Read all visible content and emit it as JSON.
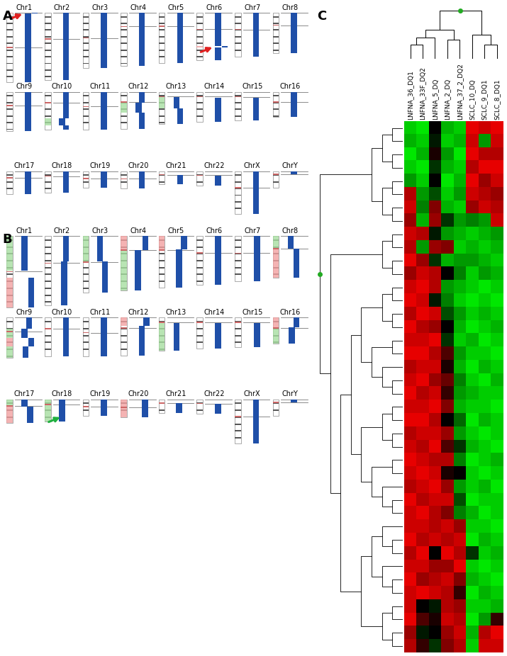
{
  "chromosomes": [
    {
      "name": "Chr1",
      "row": 0,
      "length": 249,
      "centromere": 0.5
    },
    {
      "name": "Chr2",
      "row": 0,
      "length": 243,
      "centromere": 0.39
    },
    {
      "name": "Chr3",
      "row": 0,
      "length": 198,
      "centromere": 0.46
    },
    {
      "name": "Chr4",
      "row": 0,
      "length": 191,
      "centromere": 0.26
    },
    {
      "name": "Chr5",
      "row": 0,
      "length": 181,
      "centromere": 0.27
    },
    {
      "name": "Chr6",
      "row": 0,
      "length": 171,
      "centromere": 0.35
    },
    {
      "name": "Chr7",
      "row": 0,
      "length": 159,
      "centromere": 0.38
    },
    {
      "name": "Chr8",
      "row": 0,
      "length": 146,
      "centromere": 0.31
    },
    {
      "name": "Chr9",
      "row": 1,
      "length": 141,
      "centromere": 0.35
    },
    {
      "name": "Chr10",
      "row": 1,
      "length": 136,
      "centromere": 0.29
    },
    {
      "name": "Chr11",
      "row": 1,
      "length": 135,
      "centromere": 0.39
    },
    {
      "name": "Chr12",
      "row": 1,
      "length": 134,
      "centromere": 0.27
    },
    {
      "name": "Chr13",
      "row": 1,
      "length": 115,
      "centromere": 0.15
    },
    {
      "name": "Chr14",
      "row": 1,
      "length": 107,
      "centromere": 0.16
    },
    {
      "name": "Chr15",
      "row": 1,
      "length": 102,
      "centromere": 0.17
    },
    {
      "name": "Chr16",
      "row": 1,
      "length": 90,
      "centromere": 0.41
    },
    {
      "name": "Chr17",
      "row": 2,
      "length": 83,
      "centromere": 0.29
    },
    {
      "name": "Chr18",
      "row": 2,
      "length": 78,
      "centromere": 0.23
    },
    {
      "name": "Chr19",
      "row": 2,
      "length": 59,
      "centromere": 0.45
    },
    {
      "name": "Chr20",
      "row": 2,
      "length": 63,
      "centromere": 0.44
    },
    {
      "name": "Chr21",
      "row": 2,
      "length": 48,
      "centromere": 0.27
    },
    {
      "name": "Chr22",
      "row": 2,
      "length": 51,
      "centromere": 0.29
    },
    {
      "name": "ChrX",
      "row": 2,
      "length": 155,
      "centromere": 0.39
    },
    {
      "name": "ChrY",
      "row": 2,
      "length": 59,
      "centromere": 0.2
    }
  ],
  "chart_data": [
    {
      "type": "karyogram",
      "panel_label": "A",
      "segments": {
        "Chr1": [
          [
            0,
            4,
            0.6
          ],
          [
            4,
            249,
            0
          ]
        ],
        "Chr2": [
          [
            0,
            243,
            0
          ]
        ],
        "Chr3": [
          [
            0,
            198,
            0
          ]
        ],
        "Chr4": [
          [
            0,
            191,
            0
          ]
        ],
        "Chr5": [
          [
            0,
            181,
            0
          ]
        ],
        "Chr6": [
          [
            0,
            120,
            0
          ],
          [
            120,
            124,
            0.6
          ],
          [
            124,
            171,
            0
          ]
        ],
        "Chr7": [
          [
            0,
            159,
            0
          ]
        ],
        "Chr8": [
          [
            0,
            146,
            0
          ]
        ],
        "Chr9": [
          [
            0,
            141,
            0
          ]
        ],
        "Chr10": [
          [
            0,
            95,
            0
          ],
          [
            95,
            120,
            -0.35
          ],
          [
            120,
            136,
            0
          ]
        ],
        "Chr11": [
          [
            0,
            135,
            0
          ]
        ],
        "Chr12": [
          [
            0,
            40,
            0
          ],
          [
            40,
            75,
            -0.3
          ],
          [
            75,
            134,
            0
          ]
        ],
        "Chr13": [
          [
            19,
            60,
            -0.3
          ],
          [
            60,
            115,
            0
          ]
        ],
        "Chr14": [
          [
            20,
            107,
            0
          ]
        ],
        "Chr15": [
          [
            20,
            102,
            0
          ]
        ],
        "Chr16": [
          [
            0,
            90,
            0
          ]
        ],
        "Chr17": [
          [
            0,
            83,
            0
          ]
        ],
        "Chr18": [
          [
            0,
            78,
            0
          ]
        ],
        "Chr19": [
          [
            0,
            59,
            0
          ]
        ],
        "Chr20": [
          [
            0,
            63,
            0
          ]
        ],
        "Chr21": [
          [
            14,
            48,
            0
          ]
        ],
        "Chr22": [
          [
            16,
            51,
            0
          ]
        ],
        "ChrX": [
          [
            0,
            155,
            0
          ]
        ],
        "ChrY": [
          [
            0,
            12,
            0
          ]
        ]
      },
      "arrows": [
        {
          "chromosome": "Chr1",
          "position": 2,
          "color": "#e02020"
        },
        {
          "chromosome": "Chr6",
          "position": 122,
          "color": "#e02020"
        }
      ]
    },
    {
      "type": "karyogram",
      "panel_label": "B",
      "segments": {
        "Chr1": [
          [
            0,
            120,
            -0.3
          ],
          [
            145,
            249,
            0.3
          ]
        ],
        "Chr2": [
          [
            0,
            90,
            0
          ],
          [
            90,
            243,
            -0.15
          ]
        ],
        "Chr3": [
          [
            0,
            90,
            -0.35
          ],
          [
            90,
            198,
            0.1
          ]
        ],
        "Chr4": [
          [
            0,
            50,
            0.3
          ],
          [
            50,
            191,
            -0.35
          ]
        ],
        "Chr5": [
          [
            0,
            48,
            0.35
          ],
          [
            48,
            181,
            -0.1
          ]
        ],
        "Chr6": [
          [
            0,
            171,
            0
          ]
        ],
        "Chr7": [
          [
            0,
            159,
            0.1
          ]
        ],
        "Chr8": [
          [
            0,
            45,
            -0.3
          ],
          [
            45,
            146,
            0.2
          ]
        ],
        "Chr9": [
          [
            0,
            40,
            0.1
          ],
          [
            40,
            70,
            -0.3
          ],
          [
            70,
            100,
            0.3
          ],
          [
            100,
            141,
            -0.2
          ]
        ],
        "Chr10": [
          [
            0,
            136,
            0
          ]
        ],
        "Chr11": [
          [
            0,
            135,
            0
          ]
        ],
        "Chr12": [
          [
            0,
            30,
            0.4
          ],
          [
            30,
            134,
            0
          ]
        ],
        "Chr13": [
          [
            19,
            115,
            -0.3
          ]
        ],
        "Chr14": [
          [
            20,
            107,
            0
          ]
        ],
        "Chr15": [
          [
            20,
            102,
            0.1
          ]
        ],
        "Chr16": [
          [
            0,
            35,
            0.2
          ],
          [
            35,
            90,
            -0.2
          ]
        ],
        "Chr17": [
          [
            0,
            25,
            -0.3
          ],
          [
            25,
            83,
            0.2
          ]
        ],
        "Chr18": [
          [
            0,
            78,
            -0.35
          ]
        ],
        "Chr19": [
          [
            0,
            59,
            0
          ]
        ],
        "Chr20": [
          [
            0,
            63,
            0.25
          ]
        ],
        "Chr21": [
          [
            14,
            48,
            -0.1
          ]
        ],
        "Chr22": [
          [
            16,
            51,
            0
          ]
        ],
        "ChrX": [
          [
            0,
            155,
            0
          ]
        ],
        "ChrY": [
          [
            0,
            12,
            0
          ]
        ]
      },
      "arrows": [
        {
          "chromosome": "Chr18",
          "position": 60,
          "color": "#20b040"
        }
      ]
    },
    {
      "type": "heatmap",
      "panel_label": "C",
      "columns": [
        "LNFNA_36_DQ1",
        "LNFNA_33F_DQ2",
        "LNFNA_5_DQ",
        "LNFNA_2_DQ",
        "LNFNA_37_2_DQ2",
        "SCLC_10_DQ",
        "SCLC_9_DQ1",
        "SCLC_8_DQ1"
      ],
      "color_range": [
        -1,
        1
      ],
      "column_merges": [
        [
          0,
          1,
          0.3
        ],
        [
          8,
          2,
          0.45
        ],
        [
          3,
          4,
          0.4
        ],
        [
          9,
          10,
          0.6
        ],
        [
          6,
          7,
          0.3
        ],
        [
          5,
          12,
          0.5
        ],
        [
          11,
          13,
          1.0
        ]
      ],
      "row_clusters": [
        [
          0,
          8
        ],
        [
          8,
          12
        ],
        [
          12,
          30
        ],
        [
          30,
          36
        ],
        [
          36,
          40
        ]
      ],
      "cells": [
        [
          -0.8,
          -0.9,
          0.0,
          -0.7,
          -0.8,
          0.9,
          0.8,
          0.9
        ],
        [
          -0.7,
          -0.8,
          -0.1,
          -0.8,
          -0.7,
          0.8,
          -0.6,
          0.8
        ],
        [
          -0.9,
          -0.7,
          0.1,
          -0.6,
          -0.9,
          0.9,
          0.7,
          0.7
        ],
        [
          -0.8,
          -0.9,
          -0.2,
          -0.7,
          -0.8,
          0.7,
          0.9,
          0.9
        ],
        [
          -0.6,
          -0.8,
          0.0,
          -0.9,
          -0.7,
          0.9,
          0.6,
          0.8
        ],
        [
          0.7,
          -0.6,
          -0.3,
          -0.8,
          -0.6,
          0.8,
          0.7,
          0.6
        ],
        [
          0.8,
          -0.5,
          0.5,
          -0.7,
          -0.8,
          0.6,
          0.8,
          0.7
        ],
        [
          0.6,
          -0.7,
          0.6,
          -0.2,
          -0.6,
          -0.5,
          -0.6,
          0.8
        ],
        [
          0.8,
          0.7,
          -0.1,
          -0.6,
          -0.7,
          -0.8,
          -0.7,
          -0.6
        ],
        [
          0.7,
          -0.6,
          0.6,
          0.5,
          -0.8,
          -0.7,
          -0.8,
          -0.7
        ],
        [
          0.9,
          0.6,
          -0.2,
          -0.7,
          -0.6,
          -0.6,
          -0.7,
          -0.8
        ],
        [
          0.6,
          0.8,
          0.7,
          0.0,
          -0.5,
          -0.8,
          -0.6,
          -0.7
        ],
        [
          0.8,
          0.9,
          0.7,
          -0.6,
          -0.7,
          -0.8,
          -0.9,
          -0.8
        ],
        [
          0.9,
          0.8,
          -0.1,
          -0.5,
          -0.8,
          -0.9,
          -0.8,
          -0.9
        ],
        [
          0.7,
          0.9,
          0.8,
          -0.3,
          -0.6,
          -0.8,
          -0.7,
          -0.8
        ],
        [
          0.9,
          0.7,
          0.6,
          0.0,
          -0.7,
          -0.9,
          -0.8,
          -0.7
        ],
        [
          0.8,
          0.8,
          0.9,
          -0.2,
          -0.8,
          -0.7,
          -0.9,
          -0.8
        ],
        [
          0.9,
          0.9,
          0.7,
          0.3,
          -0.6,
          -0.8,
          -0.8,
          -0.9
        ],
        [
          0.7,
          0.8,
          0.8,
          0.1,
          -0.7,
          -0.9,
          -0.7,
          -0.8
        ],
        [
          0.8,
          0.9,
          0.6,
          0.4,
          -0.5,
          -0.8,
          -0.9,
          -0.7
        ],
        [
          0.9,
          0.7,
          0.8,
          0.2,
          -0.6,
          -0.7,
          -0.8,
          -0.8
        ],
        [
          0.8,
          0.8,
          0.9,
          0.5,
          -0.7,
          -0.8,
          -0.8,
          -0.9
        ],
        [
          0.9,
          0.9,
          0.7,
          0.0,
          -0.4,
          -0.9,
          -0.7,
          -0.8
        ],
        [
          0.7,
          0.8,
          0.8,
          0.6,
          -0.6,
          -0.8,
          -0.9,
          -0.8
        ],
        [
          0.8,
          0.7,
          0.9,
          0.3,
          -0.2,
          -0.7,
          -0.8,
          -0.9
        ],
        [
          0.9,
          0.8,
          0.7,
          0.7,
          -0.5,
          -0.9,
          -0.8,
          -0.7
        ],
        [
          0.8,
          0.9,
          0.8,
          0.1,
          0.0,
          -0.8,
          -0.9,
          -0.8
        ],
        [
          0.7,
          0.8,
          0.9,
          0.6,
          -0.6,
          -0.8,
          -0.7,
          -0.9
        ],
        [
          0.9,
          0.7,
          0.8,
          0.8,
          -0.3,
          -0.9,
          -0.8,
          -0.8
        ],
        [
          0.8,
          0.9,
          0.7,
          0.5,
          -0.5,
          -0.7,
          -0.9,
          -0.8
        ],
        [
          0.8,
          0.8,
          0.7,
          0.8,
          0.6,
          -0.8,
          -0.8,
          -0.9
        ],
        [
          0.9,
          0.7,
          0.8,
          0.7,
          0.8,
          -0.9,
          -0.7,
          -0.8
        ],
        [
          0.7,
          0.9,
          0.0,
          0.9,
          0.7,
          -0.2,
          -0.8,
          -0.7
        ],
        [
          0.8,
          0.8,
          0.6,
          0.6,
          0.9,
          -0.8,
          -0.9,
          -0.8
        ],
        [
          0.9,
          0.6,
          0.7,
          0.8,
          0.5,
          -0.7,
          -0.8,
          -0.9
        ],
        [
          0.8,
          0.9,
          0.8,
          0.7,
          0.2,
          -0.9,
          -0.7,
          -0.8
        ],
        [
          0.8,
          0.0,
          -0.1,
          0.7,
          0.6,
          -0.8,
          -0.8,
          -0.7
        ],
        [
          0.9,
          0.3,
          0.1,
          0.8,
          0.7,
          -0.9,
          -0.6,
          0.2
        ],
        [
          0.6,
          -0.1,
          0.0,
          0.6,
          0.8,
          -0.7,
          0.7,
          0.9
        ],
        [
          0.7,
          0.2,
          -0.2,
          0.5,
          0.7,
          -0.8,
          0.8,
          0.8
        ]
      ]
    }
  ]
}
